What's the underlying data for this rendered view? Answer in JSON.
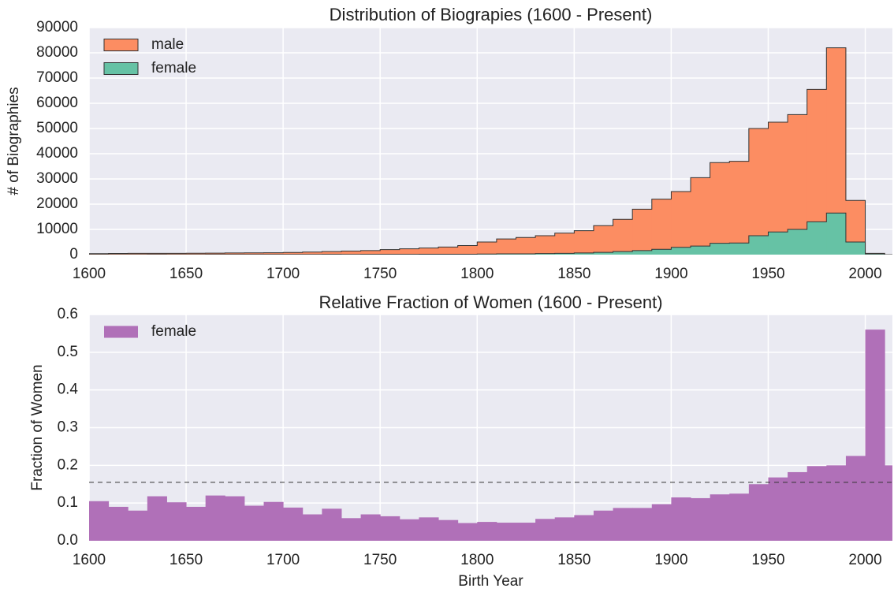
{
  "chart_data": [
    {
      "type": "histogram",
      "stacked": true,
      "title": "Distribution of Biograpies (1600 - Present)",
      "y_label": "# of Biographies",
      "bins": [
        1600,
        1610,
        1620,
        1630,
        1640,
        1650,
        1660,
        1670,
        1680,
        1690,
        1700,
        1710,
        1720,
        1730,
        1740,
        1750,
        1760,
        1770,
        1780,
        1790,
        1800,
        1810,
        1820,
        1830,
        1840,
        1850,
        1860,
        1870,
        1880,
        1890,
        1900,
        1910,
        1920,
        1930,
        1940,
        1950,
        1960,
        1970,
        1980,
        1990,
        2000,
        2010
      ],
      "series": [
        {
          "name": "male",
          "color": "#fc8d62",
          "values": [
            358,
            410,
            460,
            441,
            449,
            500,
            528,
            573,
            635,
            673,
            775,
            930,
            1098,
            1316,
            1488,
            1870,
            2169,
            2439,
            2835,
            3431,
            4750,
            5900,
            6470,
            7060,
            7980,
            8850,
            10600,
            12800,
            16400,
            19900,
            22100,
            27100,
            32000,
            32400,
            42500,
            43500,
            45500,
            52500,
            65500,
            16500,
            220
          ]
        },
        {
          "name": "female",
          "color": "#66c2a5",
          "values": [
            42,
            40,
            40,
            59,
            51,
            50,
            72,
            77,
            65,
            77,
            75,
            70,
            102,
            84,
            112,
            130,
            131,
            161,
            165,
            169,
            250,
            300,
            330,
            440,
            520,
            650,
            900,
            1200,
            1600,
            2100,
            2900,
            3400,
            4500,
            4600,
            7500,
            9000,
            10000,
            13000,
            16500,
            5000,
            280
          ]
        }
      ],
      "xlim": [
        1600,
        2014
      ],
      "ylim": [
        0,
        90000
      ],
      "xticks": [
        1600,
        1650,
        1700,
        1750,
        1800,
        1850,
        1900,
        1950,
        2000
      ],
      "yticks": [
        0,
        10000,
        20000,
        30000,
        40000,
        50000,
        60000,
        70000,
        80000,
        90000
      ],
      "grid": true,
      "legend": "upper left"
    },
    {
      "type": "histogram",
      "title": "Relative Fraction of Women (1600 - Present)",
      "x_label": "Birth Year",
      "y_label": "Fraction of Women",
      "bins": [
        1600,
        1610,
        1620,
        1630,
        1640,
        1650,
        1660,
        1670,
        1680,
        1690,
        1700,
        1710,
        1720,
        1730,
        1740,
        1750,
        1760,
        1770,
        1780,
        1790,
        1800,
        1810,
        1820,
        1830,
        1840,
        1850,
        1860,
        1870,
        1880,
        1890,
        1900,
        1910,
        1920,
        1930,
        1940,
        1950,
        1960,
        1970,
        1980,
        1990,
        2000,
        2010,
        2020
      ],
      "series": [
        {
          "name": "female",
          "color": "#b070b8",
          "values": [
            0.105,
            0.09,
            0.08,
            0.118,
            0.102,
            0.09,
            0.12,
            0.118,
            0.093,
            0.103,
            0.088,
            0.07,
            0.085,
            0.06,
            0.07,
            0.065,
            0.057,
            0.062,
            0.055,
            0.047,
            0.05,
            0.048,
            0.048,
            0.058,
            0.062,
            0.068,
            0.08,
            0.087,
            0.087,
            0.097,
            0.115,
            0.113,
            0.123,
            0.125,
            0.15,
            0.168,
            0.182,
            0.198,
            0.2,
            0.225,
            0.56,
            0.2
          ]
        }
      ],
      "reference_line": 0.155,
      "xlim": [
        1600,
        2014
      ],
      "ylim": [
        0,
        0.6
      ],
      "xticks": [
        1600,
        1650,
        1700,
        1750,
        1800,
        1850,
        1900,
        1950,
        2000
      ],
      "yticks": [
        {
          "value": 0,
          "label": "0.0"
        },
        0.1,
        0.2,
        0.3,
        0.4,
        0.5,
        0.6
      ],
      "grid": true,
      "legend": "upper left"
    }
  ]
}
